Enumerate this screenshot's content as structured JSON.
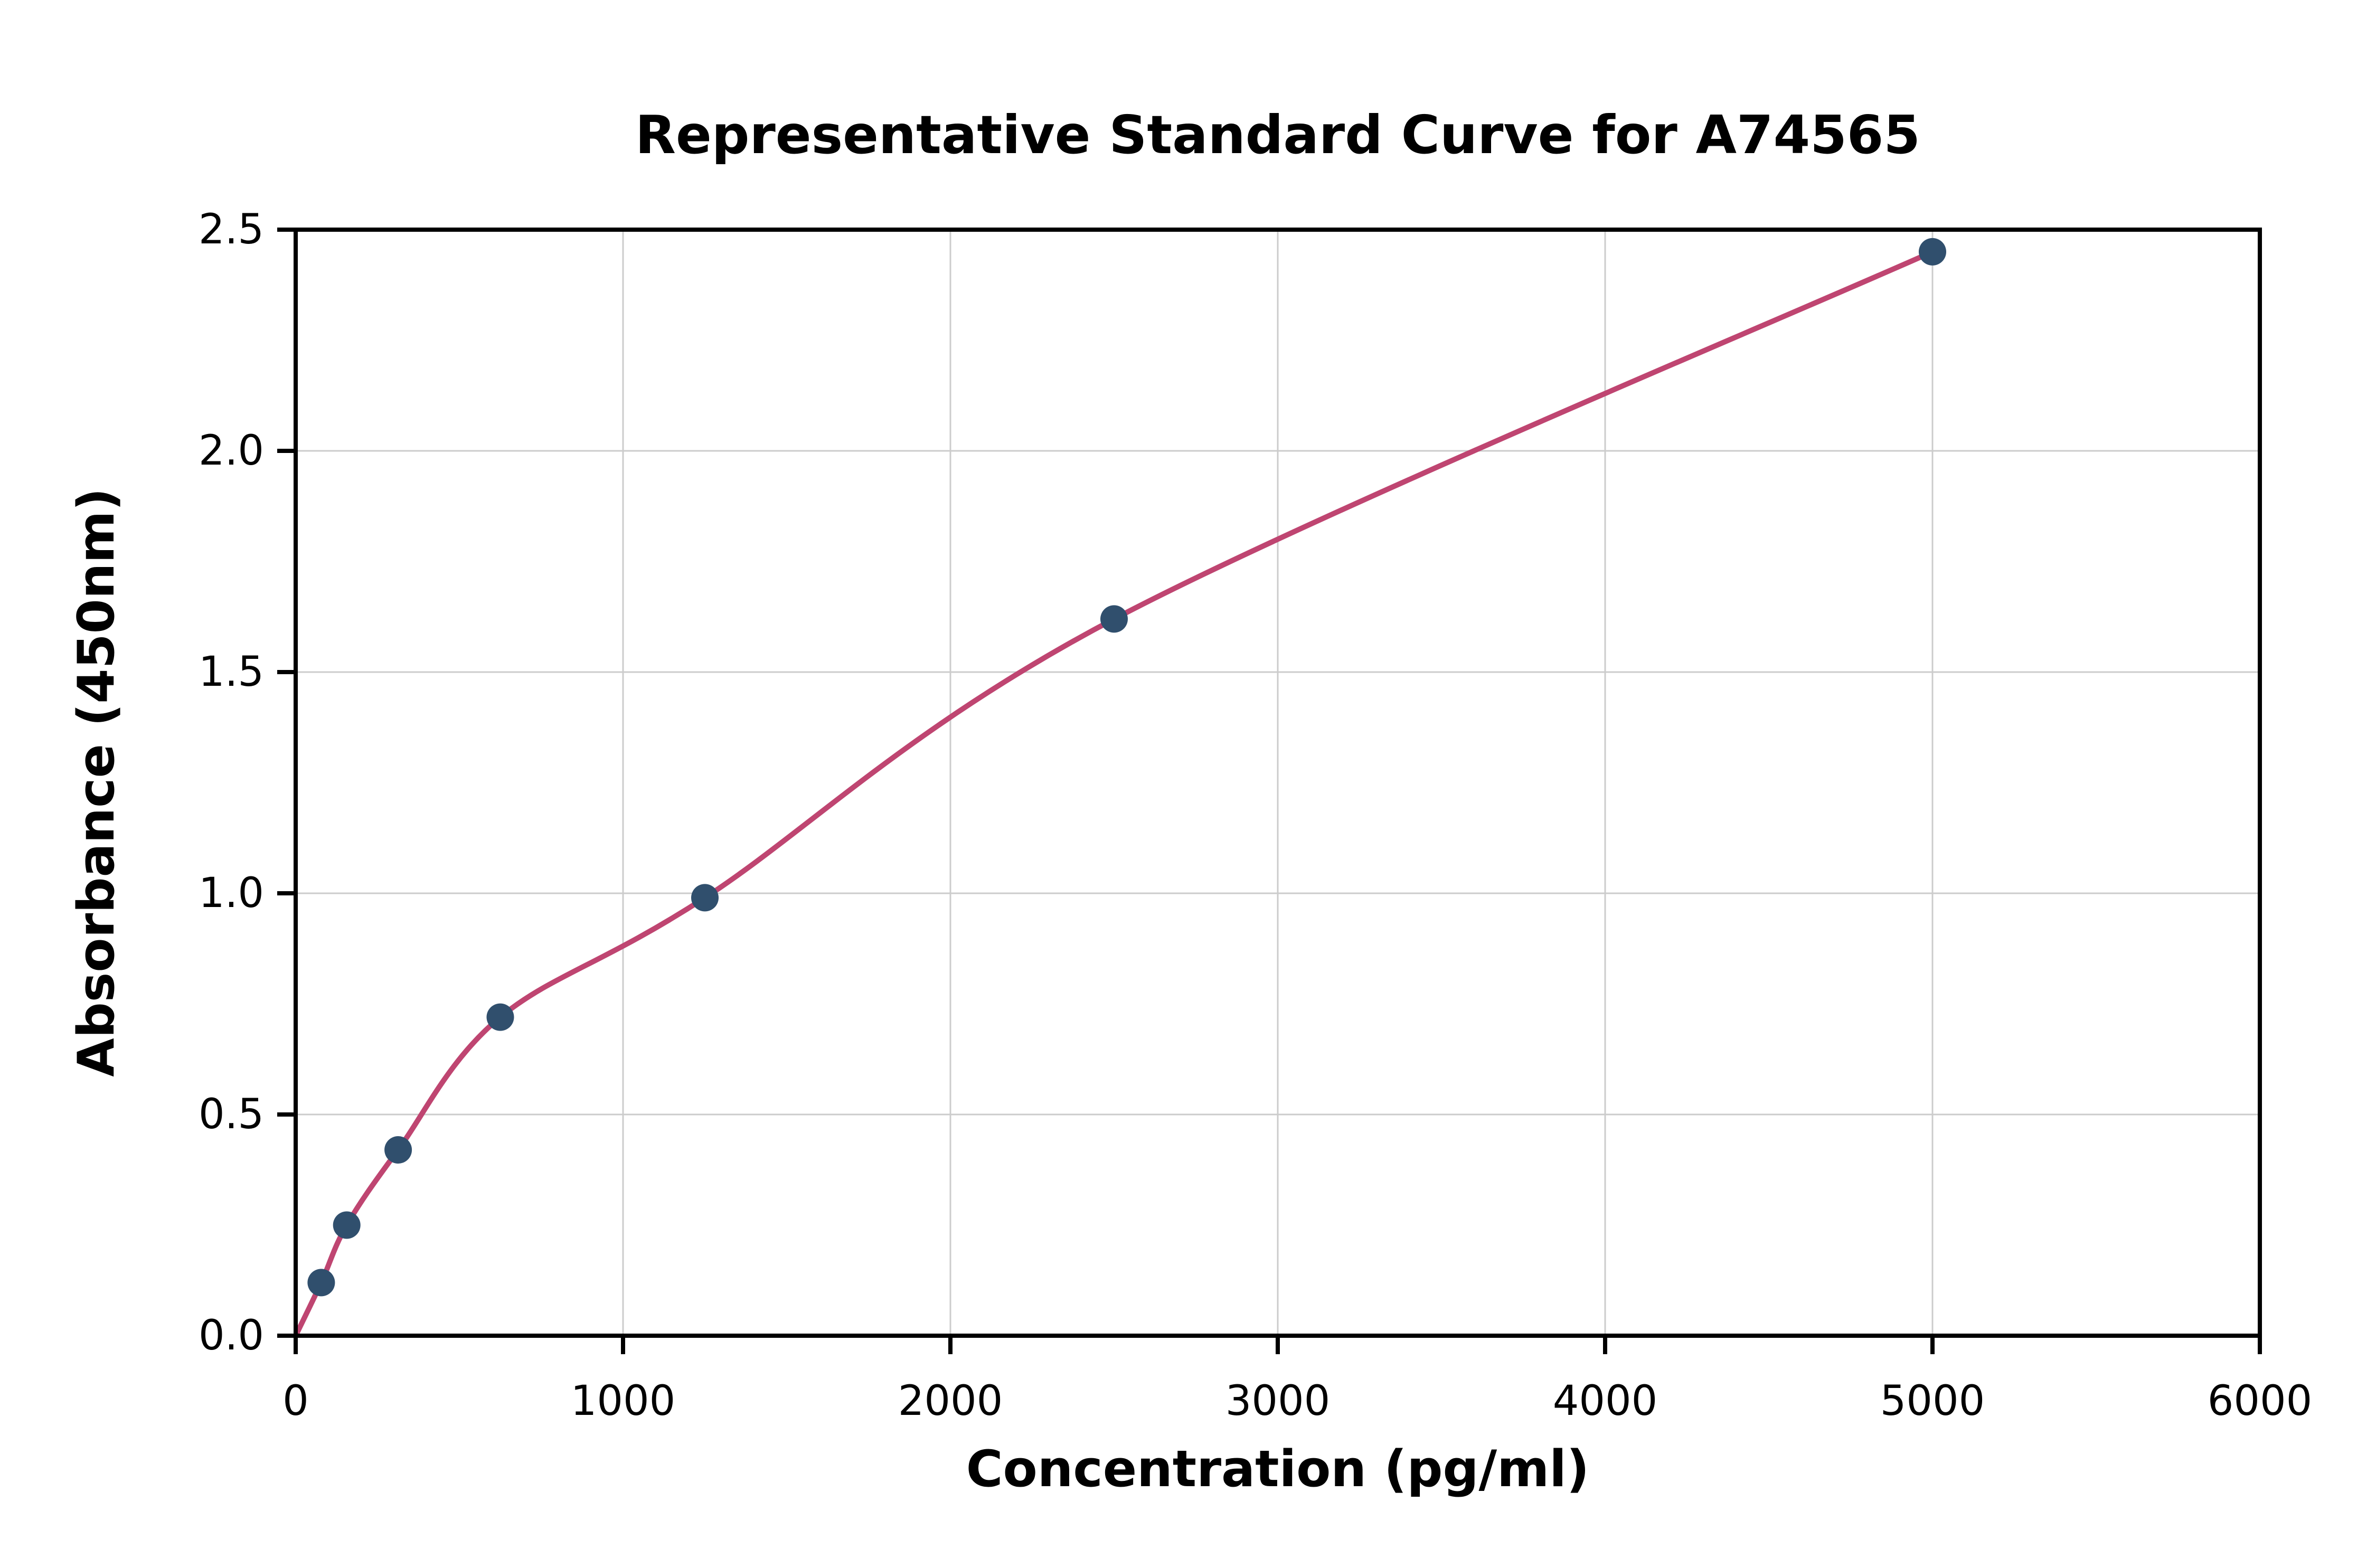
{
  "page": {
    "background": "#ffffff"
  },
  "chart_data": {
    "type": "scatter",
    "title": "Representative Standard Curve for A74565",
    "xlabel": "Concentration (pg/ml)",
    "ylabel": "Absorbance (450nm)",
    "xlim": [
      0,
      6000
    ],
    "ylim": [
      0,
      2.5
    ],
    "x_ticks": [
      0,
      1000,
      2000,
      3000,
      4000,
      5000,
      6000
    ],
    "x_tick_labels": [
      "0",
      "1000",
      "2000",
      "3000",
      "4000",
      "5000",
      "6000"
    ],
    "y_ticks": [
      0,
      0.5,
      1.0,
      1.5,
      2.0,
      2.5
    ],
    "y_tick_labels": [
      "0.0",
      "0.5",
      "1.0",
      "1.5",
      "2.0",
      "2.5"
    ],
    "grid": true,
    "legend": "none",
    "points": [
      {
        "x": 78,
        "y": 0.12
      },
      {
        "x": 156,
        "y": 0.25
      },
      {
        "x": 313,
        "y": 0.42
      },
      {
        "x": 625,
        "y": 0.72
      },
      {
        "x": 1250,
        "y": 0.99
      },
      {
        "x": 2500,
        "y": 1.62
      },
      {
        "x": 5000,
        "y": 2.45
      }
    ],
    "curve_start": {
      "x": 0,
      "y": 0
    },
    "curve_color": "#bf4571",
    "point_color": "#304f6d",
    "grid_color": "#cccccc",
    "axis_color": "#000000"
  }
}
